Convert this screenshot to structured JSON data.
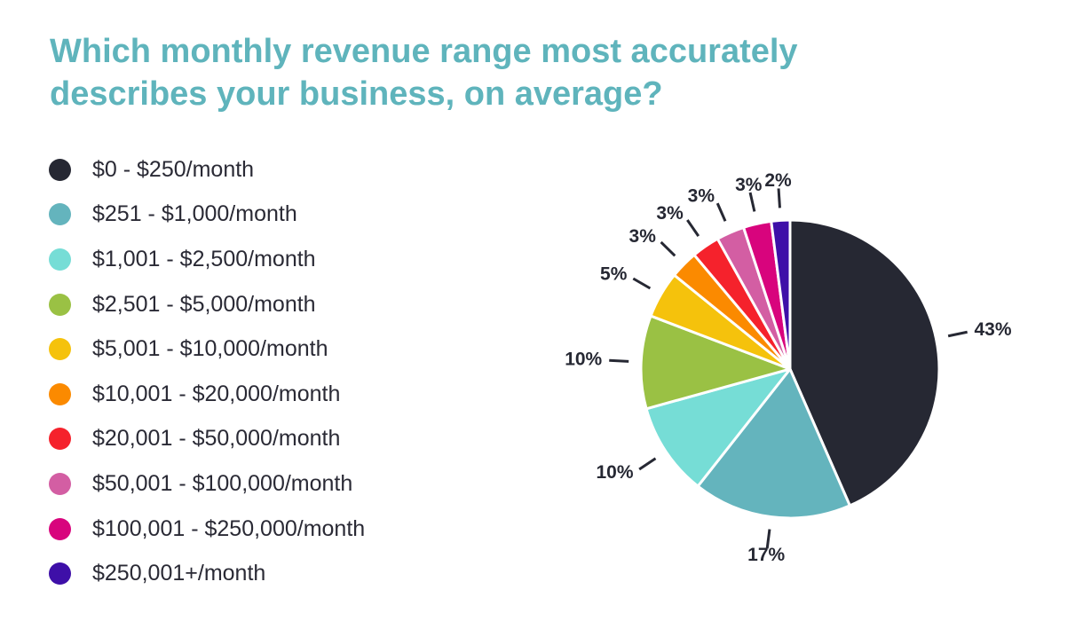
{
  "title_lines": [
    "Which monthly revenue range most accurately",
    "describes your business, on average?"
  ],
  "chart_data": {
    "type": "pie",
    "title": "Which monthly revenue range most accurately describes your business, on average?",
    "legend_position": "left",
    "start_angle_deg": 0,
    "direction": "clockwise",
    "slices": [
      {
        "label": "$0 - $250/month",
        "value": 43,
        "display": "43%",
        "color": "#262833"
      },
      {
        "label": "$251 - $1,000/month",
        "value": 17,
        "display": "17%",
        "color": "#64b4bd"
      },
      {
        "label": "$1,001 - $2,500/month",
        "value": 10,
        "display": "10%",
        "color": "#76ddd6"
      },
      {
        "label": "$2,501 - $5,000/month",
        "value": 10,
        "display": "10%",
        "color": "#9ac144"
      },
      {
        "label": "$5,001 - $10,000/month",
        "value": 5,
        "display": "5%",
        "color": "#f5c20c"
      },
      {
        "label": "$10,001 - $20,000/month",
        "value": 3,
        "display": "3%",
        "color": "#fb8a00"
      },
      {
        "label": "$20,001 - $50,000/month",
        "value": 3,
        "display": "3%",
        "color": "#f5222c"
      },
      {
        "label": "$50,001 - $100,000/month",
        "value": 3,
        "display": "3%",
        "color": "#d35ea3"
      },
      {
        "label": "$100,001 - $250,000/month",
        "value": 3,
        "display": "3%",
        "color": "#d8047d"
      },
      {
        "label": "$250,001+/month",
        "value": 2,
        "display": "2%",
        "color": "#3e0fa8"
      }
    ]
  }
}
